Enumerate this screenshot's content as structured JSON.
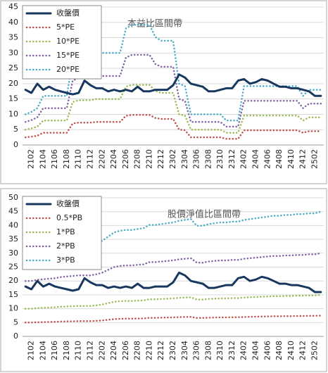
{
  "chart_data": [
    {
      "type": "line",
      "title": "本益比區間帶",
      "categories": [
        null,
        "2102",
        null,
        "2104",
        null,
        "2106",
        null,
        "2108",
        null,
        "2110",
        null,
        "2112",
        null,
        "2202",
        null,
        "2204",
        null,
        "2206",
        null,
        "2208",
        null,
        "2210",
        null,
        "2212",
        null,
        "2302",
        null,
        "2304",
        null,
        "2306",
        null,
        "2308",
        null,
        "2310",
        null,
        "2312",
        null,
        "2402",
        null,
        "2404",
        null,
        "2406",
        null,
        "2408",
        null,
        "2410",
        null,
        "2412",
        null,
        "2502",
        null
      ],
      "ylim": [
        0,
        45
      ],
      "yticks": [
        0,
        5,
        10,
        15,
        20,
        25,
        30,
        35,
        40,
        45
      ],
      "grid": true,
      "legend": "upper left",
      "series": [
        {
          "name": "收盤價",
          "color": "#17375e",
          "values": [
            18,
            17,
            20,
            18,
            19,
            18,
            17.5,
            17,
            16.5,
            17,
            21,
            19.5,
            18.5,
            18.5,
            17.5,
            18,
            17.5,
            18,
            17.5,
            19,
            17.5,
            17.5,
            18,
            18,
            18,
            19.5,
            23,
            22,
            20,
            19.5,
            19,
            17.5,
            17.5,
            18,
            18.5,
            18.5,
            21,
            21.5,
            20,
            20.5,
            21.5,
            21,
            20,
            19,
            19,
            18.5,
            18.5,
            18,
            17.5,
            16,
            16
          ]
        },
        {
          "name": "5*PE",
          "color": "#c0504d",
          "values": [
            2.5,
            2.7,
            3.0,
            4.0,
            4.0,
            4.0,
            4.0,
            4.0,
            7.0,
            7.3,
            7.3,
            7.3,
            7.5,
            7.5,
            7.5,
            7.5,
            7.5,
            9.5,
            9.8,
            9.8,
            9.8,
            9.8,
            8.8,
            8.5,
            8.5,
            8.5,
            5.0,
            4.8,
            2.5,
            2.5,
            2.5,
            2.5,
            2.5,
            2.5,
            2.0,
            2.0,
            2.0,
            4.8,
            4.8,
            4.8,
            4.8,
            4.8,
            4.8,
            4.8,
            4.8,
            4.8,
            4.8,
            4.0,
            4.5,
            4.5,
            4.5
          ]
        },
        {
          "name": "10*PE",
          "color": "#9bbb59",
          "values": [
            5,
            5.4,
            6,
            8,
            8,
            8,
            8,
            8,
            14,
            14.6,
            14.6,
            14.6,
            15,
            15,
            15,
            15,
            15,
            19,
            19.6,
            19.6,
            19.6,
            19.6,
            17.6,
            17,
            17,
            17,
            10,
            9.6,
            5,
            5,
            5,
            5,
            5,
            5,
            4,
            4,
            4,
            9.6,
            9.6,
            9.6,
            9.6,
            9.6,
            9.6,
            9.6,
            9.6,
            9.6,
            9.6,
            8,
            9,
            9,
            9
          ]
        },
        {
          "name": "15*PE",
          "color": "#8064a2",
          "values": [
            7.5,
            8.1,
            9,
            12,
            12,
            12,
            12,
            12,
            21,
            21.9,
            21.9,
            21.9,
            22.5,
            22.5,
            22.5,
            22.5,
            22.5,
            28.5,
            29.4,
            29.4,
            29.4,
            29.4,
            26.4,
            25.5,
            25.5,
            25.5,
            15,
            14.4,
            7.5,
            7.5,
            7.5,
            7.5,
            7.5,
            7.5,
            6,
            6,
            6,
            14.4,
            14.4,
            14.4,
            14.4,
            14.4,
            14.4,
            14.4,
            14.4,
            14.4,
            14.4,
            12,
            13.5,
            13.5,
            13.5
          ]
        },
        {
          "name": "20*PE",
          "color": "#4bacc6",
          "values": [
            10,
            10.8,
            12,
            16,
            16,
            16,
            16,
            16,
            28,
            29.2,
            29.2,
            29.2,
            30,
            30,
            30,
            30,
            30,
            38,
            39.2,
            39.2,
            39.2,
            39.2,
            35.2,
            34,
            34,
            34,
            20,
            19.2,
            10,
            10,
            10,
            10,
            10,
            10,
            8,
            8,
            8,
            19.2,
            19.2,
            19.2,
            19.2,
            19.2,
            19.2,
            19.2,
            19.2,
            19.2,
            19.2,
            16,
            18,
            18,
            18
          ]
        }
      ]
    },
    {
      "type": "line",
      "title": "股價淨值比區間帶",
      "categories": [
        null,
        "2102",
        null,
        "2104",
        null,
        "2106",
        null,
        "2108",
        null,
        "2110",
        null,
        "2112",
        null,
        "2202",
        null,
        "2204",
        null,
        "2206",
        null,
        "2208",
        null,
        "2210",
        null,
        "2212",
        null,
        "2302",
        null,
        "2304",
        null,
        "2306",
        null,
        "2308",
        null,
        "2310",
        null,
        "2312",
        null,
        "2402",
        null,
        "2404",
        null,
        "2406",
        null,
        "2408",
        null,
        "2410",
        null,
        "2412",
        null,
        "2502",
        null
      ],
      "ylim": [
        0,
        50
      ],
      "yticks": [
        0,
        5,
        10,
        15,
        20,
        25,
        30,
        35,
        40,
        45,
        50
      ],
      "grid": true,
      "legend": "upper left",
      "series": [
        {
          "name": "收盤價",
          "color": "#17375e",
          "values": [
            18,
            17,
            20,
            18,
            19,
            18,
            17.5,
            17,
            16.5,
            17,
            21,
            19.5,
            18.5,
            18.5,
            17.5,
            18,
            17.5,
            18,
            17.5,
            19,
            17.5,
            17.5,
            18,
            18,
            18,
            19.5,
            23,
            22,
            20,
            19.5,
            19,
            17.5,
            17.5,
            18,
            18.5,
            18.5,
            21,
            21.5,
            20,
            20.5,
            21.5,
            21,
            20,
            19,
            19,
            18.5,
            18.5,
            18,
            17.5,
            16,
            16
          ]
        },
        {
          "name": "0.5*PB",
          "color": "#c0504d",
          "values": [
            5,
            5,
            5.1,
            5.15,
            5.2,
            5.25,
            5.35,
            5.4,
            5.45,
            5.5,
            5.5,
            5.5,
            5.6,
            5.75,
            6,
            6.25,
            6.35,
            6.4,
            6.4,
            6.45,
            6.5,
            6.7,
            6.7,
            6.75,
            6.8,
            6.85,
            6.95,
            7,
            7.05,
            6.65,
            6.65,
            6.75,
            6.8,
            6.85,
            6.85,
            6.9,
            6.9,
            7,
            7.05,
            7.1,
            7.15,
            7.2,
            7.25,
            7.25,
            7.3,
            7.3,
            7.35,
            7.35,
            7.4,
            7.4,
            7.5
          ]
        },
        {
          "name": "1*PB",
          "color": "#9bbb59",
          "values": [
            10,
            10,
            10.2,
            10.3,
            10.4,
            10.5,
            10.7,
            10.8,
            10.9,
            11,
            11,
            11,
            11.2,
            11.5,
            12,
            12.5,
            12.7,
            12.8,
            12.8,
            12.9,
            13,
            13.4,
            13.4,
            13.5,
            13.6,
            13.7,
            13.9,
            14,
            14.1,
            13.3,
            13.3,
            13.5,
            13.6,
            13.7,
            13.7,
            13.8,
            13.8,
            14,
            14.1,
            14.2,
            14.3,
            14.4,
            14.5,
            14.5,
            14.6,
            14.6,
            14.7,
            14.7,
            14.8,
            14.8,
            15
          ]
        },
        {
          "name": "2*PB",
          "color": "#8064a2",
          "values": [
            20,
            20,
            20.4,
            20.6,
            20.8,
            21,
            21.4,
            21.6,
            21.8,
            22,
            22,
            22,
            22.4,
            23,
            24,
            25,
            25.4,
            25.6,
            25.6,
            25.8,
            26,
            26.8,
            26.8,
            27,
            27.2,
            27.4,
            27.8,
            28,
            28.2,
            26.6,
            26.6,
            27,
            27.2,
            27.4,
            27.4,
            27.6,
            27.6,
            28,
            28.2,
            28.4,
            28.6,
            28.8,
            29,
            29,
            29.2,
            29.2,
            29.4,
            29.4,
            29.6,
            29.6,
            30
          ]
        },
        {
          "name": "3*PB",
          "color": "#4bacc6",
          "values": [
            30,
            30,
            30.6,
            30.9,
            31.2,
            31.5,
            32.1,
            32.4,
            32.7,
            33,
            33,
            33,
            33.6,
            34.5,
            36,
            37.5,
            38.1,
            38.4,
            38.4,
            38.7,
            39,
            40.2,
            40.2,
            40.5,
            40.8,
            41.1,
            41.7,
            42,
            42.3,
            39.9,
            39.9,
            40.5,
            40.8,
            41.1,
            41.1,
            41.4,
            41.4,
            42,
            42.3,
            42.6,
            42.9,
            43.2,
            43.5,
            43.5,
            43.8,
            43.8,
            44.1,
            44.1,
            44.4,
            44.4,
            45
          ]
        }
      ]
    }
  ]
}
